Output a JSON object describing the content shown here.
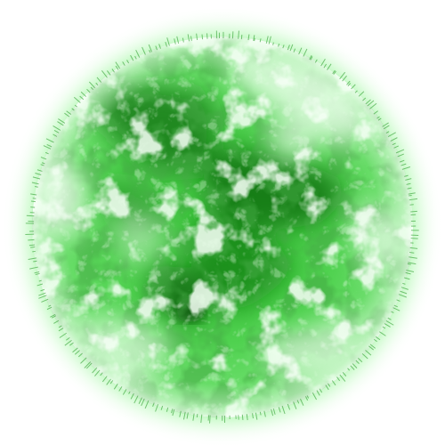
{
  "image": {
    "subject": "sun-disk",
    "colors": {
      "background": "#ffffff",
      "halo": "#7cf27c",
      "base": "#4fd14f",
      "bright": "#ecffec",
      "dark": "#157a15",
      "deep": "#0d5c0d"
    }
  }
}
